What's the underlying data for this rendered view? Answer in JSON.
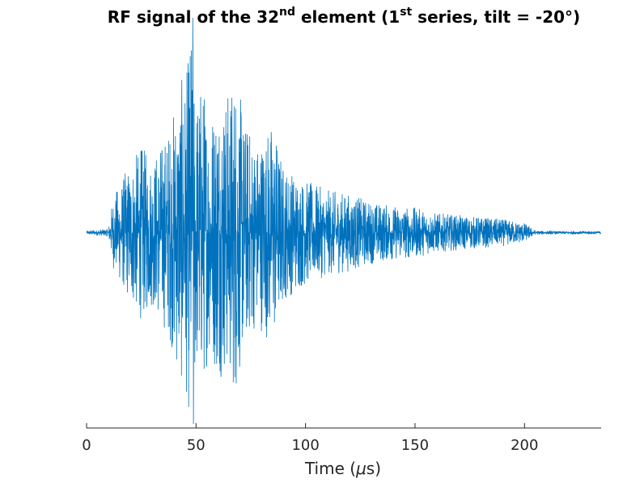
{
  "chart_data": {
    "type": "line",
    "title": {
      "part1": "RF signal of the 32",
      "sup1": "nd",
      "part2": " element (1",
      "sup2": "st",
      "part3": " series, tilt = -20°)"
    },
    "xlabel": {
      "prefix": "Time (",
      "mu": "μ",
      "suffix": "s)"
    },
    "ylabel": "",
    "xlim": [
      0,
      235
    ],
    "ylim": [
      -1.0,
      1.1
    ],
    "x_ticks": [
      0,
      50,
      100,
      150,
      200
    ],
    "x_tick_labels": [
      "0",
      "50",
      "100",
      "150",
      "200"
    ],
    "y_axis_visible": false,
    "grid": false,
    "series": [
      {
        "color": "#0072BD",
        "samples": 3000,
        "description_points": {
          "envelope_x": [
            0,
            10,
            12,
            18,
            25,
            30,
            38,
            42,
            46,
            48,
            50,
            53,
            56,
            60,
            64,
            68,
            72,
            78,
            85,
            90,
            100,
            110,
            120,
            130,
            140,
            150,
            160,
            170,
            180,
            190,
            195,
            200,
            205,
            215,
            235
          ],
          "envelope_y": [
            0.01,
            0.02,
            0.18,
            0.32,
            0.45,
            0.38,
            0.55,
            0.75,
            0.85,
            1.1,
            0.72,
            0.8,
            0.62,
            0.75,
            0.72,
            0.85,
            0.58,
            0.48,
            0.58,
            0.35,
            0.27,
            0.22,
            0.2,
            0.16,
            0.14,
            0.13,
            0.1,
            0.09,
            0.08,
            0.07,
            0.06,
            0.05,
            0.01,
            0.008,
            0.008
          ],
          "peak_max": 1.1,
          "peak_min": -0.98,
          "peak_time": 48.5
        }
      }
    ]
  },
  "colors": {
    "signal": "#0072BD",
    "axis": "#262626",
    "background": "#ffffff"
  }
}
